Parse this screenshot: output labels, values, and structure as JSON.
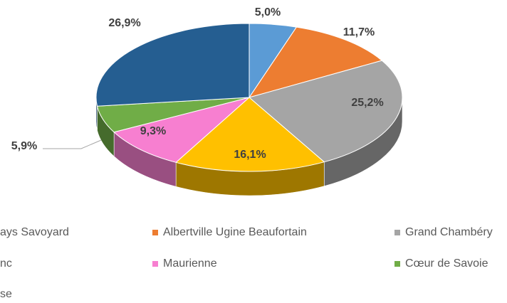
{
  "chart_data": {
    "type": "pie3d",
    "categories": [
      "ays Savoyard",
      "Albertville Ugine Beaufortain",
      "Grand Chambéry",
      "nc",
      "Maurienne",
      "Cœur de Savoie",
      "se"
    ],
    "values": [
      5.0,
      11.7,
      25.2,
      16.1,
      9.3,
      5.9,
      26.9
    ],
    "value_labels": [
      "5,0%",
      "11,7%",
      "25,2%",
      "16,1%",
      "9,3%",
      "5,9%",
      "26,9%"
    ],
    "colors": [
      "#5b9bd5",
      "#ed7d31",
      "#a5a5a5",
      "#ffc000",
      "#f77fd0",
      "#70ad47",
      "#255e91"
    ],
    "legend": "bottom"
  }
}
